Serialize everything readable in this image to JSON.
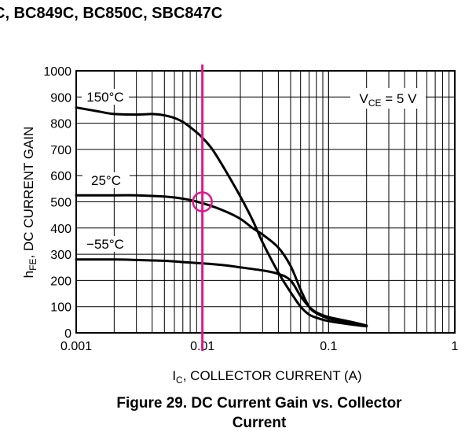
{
  "header": {
    "title": "C, BC849C, BC850C, SBC847C"
  },
  "caption": {
    "line1": "Figure 29. DC Current Gain vs. Collector",
    "line2": "Current"
  },
  "chart_data": {
    "type": "line",
    "x_scale": "log",
    "xlim": [
      0.001,
      1
    ],
    "ylim": [
      0,
      1000
    ],
    "ylabel_main": "h",
    "ylabel_sub": "FE",
    "ylabel_rest": ", DC CURRENT GAIN",
    "xlabel_main": "I",
    "xlabel_sub": "C",
    "xlabel_rest": ", COLLECTOR CURRENT (A)",
    "x_ticks": [
      {
        "value": 0.001,
        "label": "0.001"
      },
      {
        "value": 0.01,
        "label": "0.01"
      },
      {
        "value": 0.1,
        "label": "0.1"
      },
      {
        "value": 1,
        "label": "1"
      }
    ],
    "y_ticks": [
      {
        "value": 0,
        "label": "0"
      },
      {
        "value": 100,
        "label": "100"
      },
      {
        "value": 200,
        "label": "200"
      },
      {
        "value": 300,
        "label": "300"
      },
      {
        "value": 400,
        "label": "400"
      },
      {
        "value": 500,
        "label": "500"
      },
      {
        "value": 600,
        "label": "600"
      },
      {
        "value": 700,
        "label": "700"
      },
      {
        "value": 800,
        "label": "800"
      },
      {
        "value": 900,
        "label": "900"
      },
      {
        "value": 1000,
        "label": "1000"
      }
    ],
    "grid": true,
    "condition": {
      "main": "V",
      "sub": "CE",
      "rest": " = 5 V"
    },
    "series": [
      {
        "name": "150°C",
        "x": [
          0.001,
          0.0015,
          0.002,
          0.003,
          0.004,
          0.005,
          0.006,
          0.007,
          0.008,
          0.009,
          0.01,
          0.012,
          0.015,
          0.02,
          0.025,
          0.03,
          0.04,
          0.05,
          0.06,
          0.07,
          0.08,
          0.1,
          0.15,
          0.2
        ],
        "y": [
          860,
          845,
          835,
          833,
          835,
          830,
          820,
          805,
          785,
          765,
          745,
          700,
          625,
          520,
          430,
          345,
          230,
          155,
          100,
          70,
          58,
          45,
          32,
          25
        ]
      },
      {
        "name": "25°C",
        "x": [
          0.001,
          0.002,
          0.003,
          0.005,
          0.007,
          0.01,
          0.015,
          0.02,
          0.025,
          0.03,
          0.04,
          0.05,
          0.06,
          0.07,
          0.08,
          0.1,
          0.15,
          0.2
        ],
        "y": [
          525,
          525,
          525,
          520,
          512,
          495,
          465,
          435,
          400,
          375,
          325,
          255,
          165,
          100,
          75,
          55,
          38,
          27
        ]
      },
      {
        "name": "−55°C",
        "x": [
          0.001,
          0.002,
          0.003,
          0.005,
          0.007,
          0.01,
          0.015,
          0.02,
          0.03,
          0.04,
          0.05,
          0.06,
          0.07,
          0.08,
          0.1,
          0.15,
          0.2
        ],
        "y": [
          280,
          280,
          278,
          275,
          270,
          265,
          258,
          250,
          238,
          225,
          200,
          140,
          100,
          78,
          60,
          42,
          28
        ]
      }
    ],
    "series_labels": [
      "150°C",
      "25°C",
      "−55°C"
    ],
    "marker_x": 0.01,
    "highlight": {
      "x": 0.01,
      "y": 500
    }
  }
}
